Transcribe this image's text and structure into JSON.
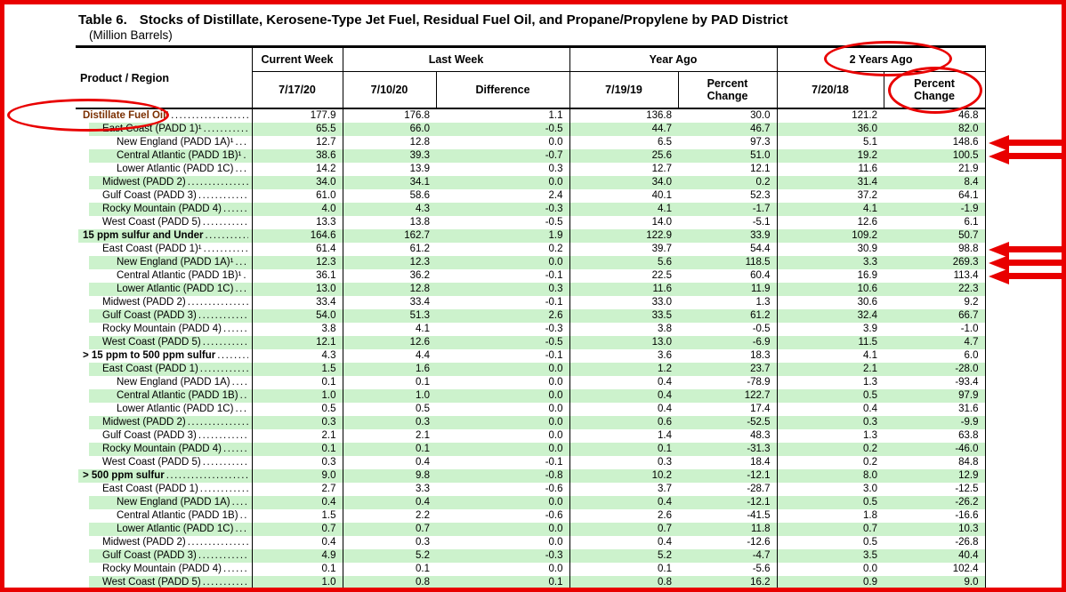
{
  "title": {
    "prefix": "Table 6.",
    "text": "Stocks of Distillate, Kerosene-Type Jet Fuel, Residual Fuel Oil, and Propane/Propylene by PAD District",
    "unit": "(Million Barrels)"
  },
  "header": {
    "product_region": "Product / Region",
    "groups": [
      {
        "label": "Current Week",
        "cols": [
          "7/17/20"
        ]
      },
      {
        "label": "Last Week",
        "cols": [
          "7/10/20",
          "Difference"
        ]
      },
      {
        "label": "Year Ago",
        "cols": [
          "7/19/19",
          "Percent Change"
        ]
      },
      {
        "label": "2 Years Ago",
        "cols": [
          "7/20/18",
          "Percent Change"
        ]
      }
    ]
  },
  "colors": {
    "annotation_red": "#e90000",
    "row_highlight_green": "#ccf2cc",
    "product_maroon": "#7b2f00"
  },
  "rows": [
    {
      "label": "Distillate Fuel Oil¹",
      "indent": 0,
      "bold": true,
      "maroon": true,
      "arrow": false,
      "values": [
        "177.9",
        "176.8",
        "1.1",
        "136.8",
        "30.0",
        "121.2",
        "46.8"
      ]
    },
    {
      "label": "East Coast (PADD 1)¹",
      "indent": 1,
      "bold": false,
      "maroon": false,
      "arrow": false,
      "values": [
        "65.5",
        "66.0",
        "-0.5",
        "44.7",
        "46.7",
        "36.0",
        "82.0"
      ]
    },
    {
      "label": "New England (PADD 1A)¹",
      "indent": 2,
      "bold": false,
      "maroon": false,
      "arrow": true,
      "values": [
        "12.7",
        "12.8",
        "0.0",
        "6.5",
        "97.3",
        "5.1",
        "148.6"
      ]
    },
    {
      "label": "Central Atlantic (PADD 1B)¹",
      "indent": 2,
      "bold": false,
      "maroon": false,
      "arrow": true,
      "values": [
        "38.6",
        "39.3",
        "-0.7",
        "25.6",
        "51.0",
        "19.2",
        "100.5"
      ]
    },
    {
      "label": "Lower Atlantic (PADD 1C)",
      "indent": 2,
      "bold": false,
      "maroon": false,
      "arrow": false,
      "values": [
        "14.2",
        "13.9",
        "0.3",
        "12.7",
        "12.1",
        "11.6",
        "21.9"
      ]
    },
    {
      "label": "Midwest (PADD 2)",
      "indent": 1,
      "bold": false,
      "maroon": false,
      "arrow": false,
      "values": [
        "34.0",
        "34.1",
        "0.0",
        "34.0",
        "0.2",
        "31.4",
        "8.4"
      ]
    },
    {
      "label": "Gulf Coast (PADD 3)",
      "indent": 1,
      "bold": false,
      "maroon": false,
      "arrow": false,
      "values": [
        "61.0",
        "58.6",
        "2.4",
        "40.1",
        "52.3",
        "37.2",
        "64.1"
      ]
    },
    {
      "label": "Rocky Mountain (PADD 4)",
      "indent": 1,
      "bold": false,
      "maroon": false,
      "arrow": false,
      "values": [
        "4.0",
        "4.3",
        "-0.3",
        "4.1",
        "-1.7",
        "4.1",
        "-1.9"
      ]
    },
    {
      "label": "West Coast (PADD 5)",
      "indent": 1,
      "bold": false,
      "maroon": false,
      "arrow": false,
      "values": [
        "13.3",
        "13.8",
        "-0.5",
        "14.0",
        "-5.1",
        "12.6",
        "6.1"
      ]
    },
    {
      "label": "15 ppm sulfur and Under",
      "indent": 0,
      "bold": true,
      "maroon": false,
      "arrow": false,
      "values": [
        "164.6",
        "162.7",
        "1.9",
        "122.9",
        "33.9",
        "109.2",
        "50.7"
      ]
    },
    {
      "label": "East Coast (PADD 1)¹",
      "indent": 1,
      "bold": false,
      "maroon": false,
      "arrow": true,
      "values": [
        "61.4",
        "61.2",
        "0.2",
        "39.7",
        "54.4",
        "30.9",
        "98.8"
      ]
    },
    {
      "label": "New England (PADD 1A)¹",
      "indent": 2,
      "bold": false,
      "maroon": false,
      "arrow": true,
      "values": [
        "12.3",
        "12.3",
        "0.0",
        "5.6",
        "118.5",
        "3.3",
        "269.3"
      ]
    },
    {
      "label": "Central Atlantic (PADD 1B)¹",
      "indent": 2,
      "bold": false,
      "maroon": false,
      "arrow": true,
      "values": [
        "36.1",
        "36.2",
        "-0.1",
        "22.5",
        "60.4",
        "16.9",
        "113.4"
      ]
    },
    {
      "label": "Lower Atlantic (PADD 1C)",
      "indent": 2,
      "bold": false,
      "maroon": false,
      "arrow": false,
      "values": [
        "13.0",
        "12.8",
        "0.3",
        "11.6",
        "11.9",
        "10.6",
        "22.3"
      ]
    },
    {
      "label": "Midwest (PADD 2)",
      "indent": 1,
      "bold": false,
      "maroon": false,
      "arrow": false,
      "values": [
        "33.4",
        "33.4",
        "-0.1",
        "33.0",
        "1.3",
        "30.6",
        "9.2"
      ]
    },
    {
      "label": "Gulf Coast (PADD 3)",
      "indent": 1,
      "bold": false,
      "maroon": false,
      "arrow": false,
      "values": [
        "54.0",
        "51.3",
        "2.6",
        "33.5",
        "61.2",
        "32.4",
        "66.7"
      ]
    },
    {
      "label": "Rocky Mountain (PADD 4)",
      "indent": 1,
      "bold": false,
      "maroon": false,
      "arrow": false,
      "values": [
        "3.8",
        "4.1",
        "-0.3",
        "3.8",
        "-0.5",
        "3.9",
        "-1.0"
      ]
    },
    {
      "label": "West Coast (PADD 5)",
      "indent": 1,
      "bold": false,
      "maroon": false,
      "arrow": false,
      "values": [
        "12.1",
        "12.6",
        "-0.5",
        "13.0",
        "-6.9",
        "11.5",
        "4.7"
      ]
    },
    {
      "label": "> 15 ppm to 500 ppm sulfur",
      "indent": 0,
      "bold": true,
      "maroon": false,
      "arrow": false,
      "values": [
        "4.3",
        "4.4",
        "-0.1",
        "3.6",
        "18.3",
        "4.1",
        "6.0"
      ]
    },
    {
      "label": "East Coast (PADD 1)",
      "indent": 1,
      "bold": false,
      "maroon": false,
      "arrow": false,
      "values": [
        "1.5",
        "1.6",
        "0.0",
        "1.2",
        "23.7",
        "2.1",
        "-28.0"
      ]
    },
    {
      "label": "New England (PADD 1A)",
      "indent": 2,
      "bold": false,
      "maroon": false,
      "arrow": false,
      "values": [
        "0.1",
        "0.1",
        "0.0",
        "0.4",
        "-78.9",
        "1.3",
        "-93.4"
      ]
    },
    {
      "label": "Central Atlantic (PADD 1B)",
      "indent": 2,
      "bold": false,
      "maroon": false,
      "arrow": false,
      "values": [
        "1.0",
        "1.0",
        "0.0",
        "0.4",
        "122.7",
        "0.5",
        "97.9"
      ]
    },
    {
      "label": "Lower Atlantic (PADD 1C)",
      "indent": 2,
      "bold": false,
      "maroon": false,
      "arrow": false,
      "values": [
        "0.5",
        "0.5",
        "0.0",
        "0.4",
        "17.4",
        "0.4",
        "31.6"
      ]
    },
    {
      "label": "Midwest (PADD 2)",
      "indent": 1,
      "bold": false,
      "maroon": false,
      "arrow": false,
      "values": [
        "0.3",
        "0.3",
        "0.0",
        "0.6",
        "-52.5",
        "0.3",
        "-9.9"
      ]
    },
    {
      "label": "Gulf Coast (PADD 3)",
      "indent": 1,
      "bold": false,
      "maroon": false,
      "arrow": false,
      "values": [
        "2.1",
        "2.1",
        "0.0",
        "1.4",
        "48.3",
        "1.3",
        "63.8"
      ]
    },
    {
      "label": "Rocky Mountain (PADD 4)",
      "indent": 1,
      "bold": false,
      "maroon": false,
      "arrow": false,
      "values": [
        "0.1",
        "0.1",
        "0.0",
        "0.1",
        "-31.3",
        "0.2",
        "-46.0"
      ]
    },
    {
      "label": "West Coast (PADD 5)",
      "indent": 1,
      "bold": false,
      "maroon": false,
      "arrow": false,
      "values": [
        "0.3",
        "0.4",
        "-0.1",
        "0.3",
        "18.4",
        "0.2",
        "84.8"
      ]
    },
    {
      "label": "> 500 ppm sulfur",
      "indent": 0,
      "bold": true,
      "maroon": false,
      "arrow": false,
      "values": [
        "9.0",
        "9.8",
        "-0.8",
        "10.2",
        "-12.1",
        "8.0",
        "12.9"
      ]
    },
    {
      "label": "East Coast (PADD 1)",
      "indent": 1,
      "bold": false,
      "maroon": false,
      "arrow": false,
      "values": [
        "2.7",
        "3.3",
        "-0.6",
        "3.7",
        "-28.7",
        "3.0",
        "-12.5"
      ]
    },
    {
      "label": "New England (PADD 1A)",
      "indent": 2,
      "bold": false,
      "maroon": false,
      "arrow": false,
      "values": [
        "0.4",
        "0.4",
        "0.0",
        "0.4",
        "-12.1",
        "0.5",
        "-26.2"
      ]
    },
    {
      "label": "Central Atlantic (PADD 1B)",
      "indent": 2,
      "bold": false,
      "maroon": false,
      "arrow": false,
      "values": [
        "1.5",
        "2.2",
        "-0.6",
        "2.6",
        "-41.5",
        "1.8",
        "-16.6"
      ]
    },
    {
      "label": "Lower Atlantic (PADD 1C)",
      "indent": 2,
      "bold": false,
      "maroon": false,
      "arrow": false,
      "values": [
        "0.7",
        "0.7",
        "0.0",
        "0.7",
        "11.8",
        "0.7",
        "10.3"
      ]
    },
    {
      "label": "Midwest (PADD 2)",
      "indent": 1,
      "bold": false,
      "maroon": false,
      "arrow": false,
      "values": [
        "0.4",
        "0.3",
        "0.0",
        "0.4",
        "-12.6",
        "0.5",
        "-26.8"
      ]
    },
    {
      "label": "Gulf Coast (PADD 3)",
      "indent": 1,
      "bold": false,
      "maroon": false,
      "arrow": false,
      "values": [
        "4.9",
        "5.2",
        "-0.3",
        "5.2",
        "-4.7",
        "3.5",
        "40.4"
      ]
    },
    {
      "label": "Rocky Mountain (PADD 4)",
      "indent": 1,
      "bold": false,
      "maroon": false,
      "arrow": false,
      "values": [
        "0.1",
        "0.1",
        "0.0",
        "0.1",
        "-5.6",
        "0.0",
        "102.4"
      ]
    },
    {
      "label": "West Coast (PADD 5)",
      "indent": 1,
      "bold": false,
      "maroon": false,
      "arrow": false,
      "values": [
        "1.0",
        "0.8",
        "0.1",
        "0.8",
        "16.2",
        "0.9",
        "9.0"
      ]
    }
  ],
  "annotations": {
    "circles": [
      {
        "highlights": "Distillate Fuel Oil¹ row label"
      },
      {
        "highlights": "2 Years Ago column group header"
      },
      {
        "highlights": "Percent Change header under 2 Years Ago"
      }
    ],
    "arrow_targets": [
      "148.6",
      "100.5",
      "98.8",
      "269.3",
      "113.4"
    ]
  }
}
